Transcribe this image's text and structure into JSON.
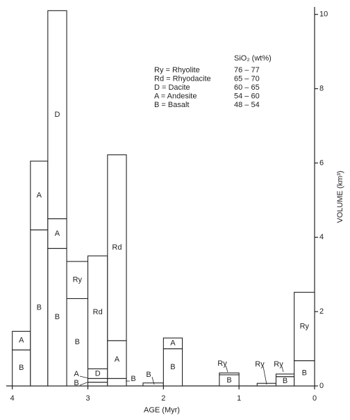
{
  "chart_data": {
    "type": "stacked-interval-bar",
    "xlabel": "AGE (Myr)",
    "ylabel": "VOLUME (km³)",
    "xlim": [
      4.08,
      0
    ],
    "xticks": [
      4,
      3,
      2,
      1,
      0
    ],
    "ylim": [
      0,
      10.2
    ],
    "yticks": [
      0,
      2,
      4,
      6,
      8,
      10
    ],
    "legend_title": "SiO₂ (wt%)",
    "legend": [
      {
        "name": "Ry = Rhyolite",
        "range": "76 – 77"
      },
      {
        "name": "Rd = Rhyodacite",
        "range": "65 – 70"
      },
      {
        "name": "D = Dacite",
        "range": "60 – 65"
      },
      {
        "name": "A = Andesite",
        "range": "54 – 60"
      },
      {
        "name": "B = Basalt",
        "range": "48 – 54"
      }
    ],
    "bars": [
      {
        "x": [
          4.0,
          3.76
        ],
        "segments": [
          {
            "label": "B",
            "value": 0.97
          },
          {
            "label": "A",
            "value": 0.5
          }
        ]
      },
      {
        "x": [
          3.76,
          3.53
        ],
        "segments": [
          {
            "label": "B",
            "value": 4.2
          },
          {
            "label": "A",
            "value": 1.85
          }
        ]
      },
      {
        "x": [
          3.53,
          3.28
        ],
        "segments": [
          {
            "label": "B",
            "value": 3.7
          },
          {
            "label": "A",
            "value": 0.8
          },
          {
            "label": "D",
            "value": 5.6
          }
        ]
      },
      {
        "x": [
          3.28,
          3.0
        ],
        "segments": [
          {
            "label": "B",
            "value": 2.35
          },
          {
            "label": "Ry",
            "value": 1.0
          }
        ]
      },
      {
        "x": [
          3.0,
          2.74
        ],
        "segments": [
          {
            "label": "B",
            "value": 0.1
          },
          {
            "label": "A",
            "value": 0.1
          },
          {
            "label": "D",
            "value": 0.26
          },
          {
            "label": "Rd",
            "value": 3.04
          }
        ]
      },
      {
        "x": [
          2.74,
          2.49
        ],
        "segments": [
          {
            "label": "B",
            "value": 0.2
          },
          {
            "label": "A",
            "value": 1.02
          },
          {
            "label": "Rd",
            "value": 5.0
          }
        ]
      },
      {
        "x": [
          2.27,
          2.0
        ],
        "segments": [
          {
            "label": "B",
            "value": 0.08
          }
        ]
      },
      {
        "x": [
          2.0,
          1.75
        ],
        "segments": [
          {
            "label": "B",
            "value": 1.0
          },
          {
            "label": "A",
            "value": 0.29
          }
        ]
      },
      {
        "x": [
          1.26,
          1.0
        ],
        "segments": [
          {
            "label": "B",
            "value": 0.3
          },
          {
            "label": "Ry",
            "value": 0.05
          }
        ]
      },
      {
        "x": [
          0.76,
          0.51
        ],
        "segments": [
          {
            "label": "Ry",
            "value": 0.07
          }
        ]
      },
      {
        "x": [
          0.51,
          0.27
        ],
        "segments": [
          {
            "label": "B",
            "value": 0.25
          },
          {
            "label": "Ry",
            "value": 0.07
          }
        ]
      },
      {
        "x": [
          0.27,
          0
        ],
        "segments": [
          {
            "label": "B",
            "value": 0.68
          },
          {
            "label": "Ry",
            "value": 1.84
          }
        ]
      }
    ]
  }
}
